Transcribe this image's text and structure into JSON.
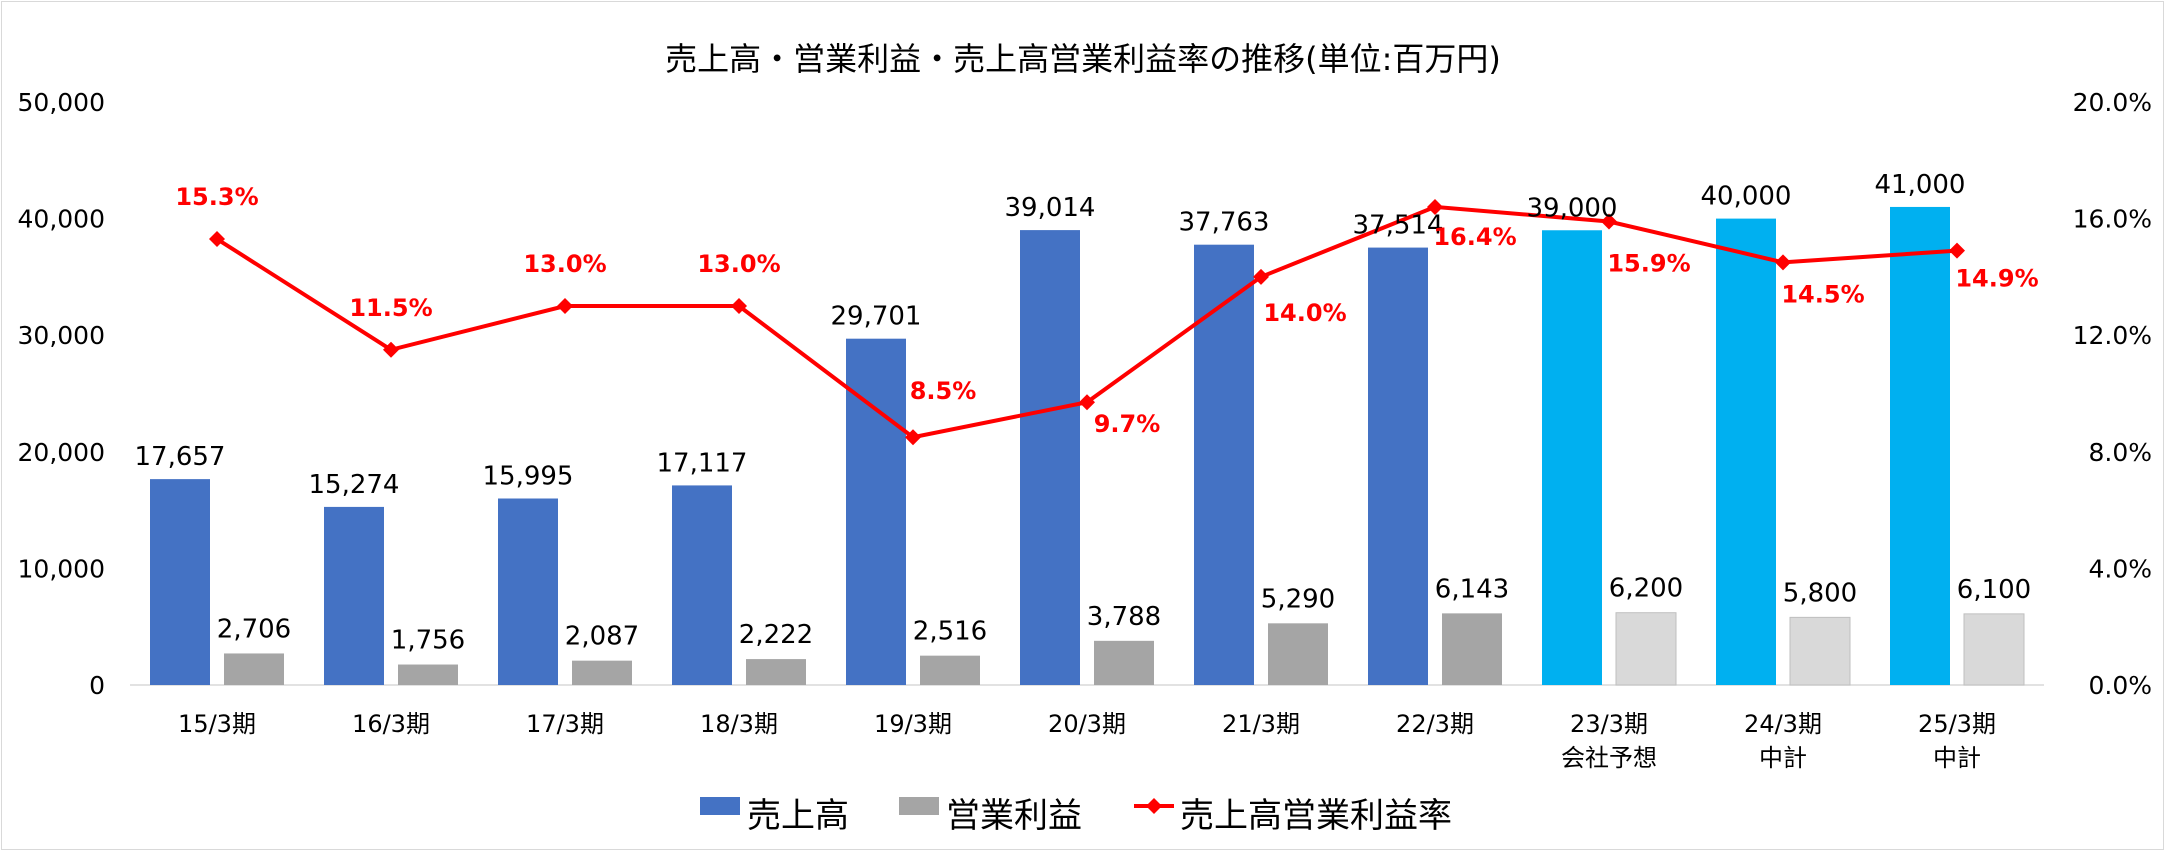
{
  "chart_data": {
    "type": "bar",
    "title": "売上高・営業利益・売上高営業利益率の推移(単位:百万円)",
    "categories": [
      [
        "15/3期"
      ],
      [
        "16/3期"
      ],
      [
        "17/3期"
      ],
      [
        "18/3期"
      ],
      [
        "19/3期"
      ],
      [
        "20/3期"
      ],
      [
        "21/3期"
      ],
      [
        "22/3期"
      ],
      [
        "23/3期",
        "会社予想"
      ],
      [
        "24/3期",
        "中計"
      ],
      [
        "25/3期",
        "中計"
      ]
    ],
    "series": [
      {
        "name": "売上高",
        "type": "bar",
        "axis": "left",
        "values": [
          17657,
          15274,
          15995,
          17117,
          29701,
          39014,
          37763,
          37514,
          39000,
          40000,
          41000
        ],
        "labels": [
          "17,657",
          "15,274",
          "15,995",
          "17,117",
          "29,701",
          "39,014",
          "37,763",
          "37,514",
          "39,000",
          "40,000",
          "41,000"
        ]
      },
      {
        "name": "営業利益",
        "type": "bar",
        "axis": "left",
        "values": [
          2706,
          1756,
          2087,
          2222,
          2516,
          3788,
          5290,
          6143,
          6200,
          5800,
          6100
        ],
        "labels": [
          "2,706",
          "1,756",
          "2,087",
          "2,222",
          "2,516",
          "3,788",
          "5,290",
          "6,143",
          "6,200",
          "5,800",
          "6,100"
        ]
      },
      {
        "name": "売上高営業利益率",
        "type": "line",
        "axis": "right",
        "values": [
          15.3,
          11.5,
          13.0,
          13.0,
          8.5,
          9.7,
          14.0,
          16.4,
          15.9,
          14.5,
          14.9
        ],
        "labels": [
          "15.3%",
          "11.5%",
          "13.0%",
          "13.0%",
          "8.5%",
          "9.7%",
          "14.0%",
          "16.4%",
          "15.9%",
          "14.5%",
          "14.9%"
        ]
      }
    ],
    "y_left": {
      "min": 0,
      "max": 50000,
      "ticks": [
        "0",
        "10,000",
        "20,000",
        "30,000",
        "40,000",
        "50,000"
      ]
    },
    "y_right": {
      "min": 0,
      "max": 20,
      "ticks": [
        "0.0%",
        "4.0%",
        "8.0%",
        "12.0%",
        "16.0%",
        "20.0%"
      ]
    },
    "grid": false,
    "legend": "bottom",
    "forecast_from_index": 8,
    "colors": {
      "sales": "#4472c4",
      "sales_forecast": "#00b0f0",
      "profit": "#a5a5a5",
      "profit_forecast": "#d9d9d9",
      "rate": "#ff0000"
    }
  }
}
